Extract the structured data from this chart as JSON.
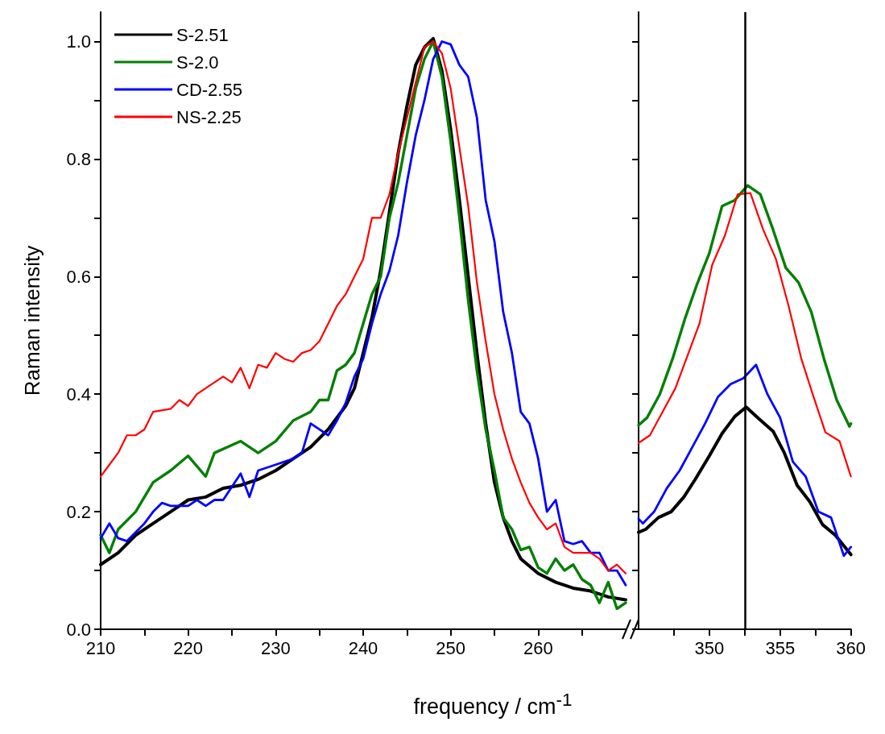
{
  "chart_data": [
    {
      "type": "line",
      "xlabel": "frequency / cm$^{-1}$",
      "ylabel": "Raman intensity",
      "xlim": [
        210,
        270
      ],
      "xticks": [
        210,
        {
          "value": 215,
          "label": null
        },
        220,
        {
          "value": 225,
          "label": null
        },
        230,
        {
          "value": 235,
          "label": null
        },
        240,
        {
          "value": 245,
          "label": null
        },
        250,
        {
          "value": 255,
          "label": null
        },
        260,
        {
          "value": 265,
          "label": null
        }
      ],
      "ylim": [
        0,
        1.05
      ],
      "yticks": [
        {
          "value": 0,
          "label": "0.0"
        },
        {
          "value": 0.1,
          "label": null
        },
        0.2,
        {
          "value": 0.3,
          "label": null
        },
        0.4,
        {
          "value": 0.5,
          "label": null
        },
        0.6,
        {
          "value": 0.7,
          "label": null
        },
        0.8,
        {
          "value": 0.9,
          "label": null
        },
        {
          "value": 1,
          "label": "1.0"
        }
      ],
      "legend": "top left",
      "series": [
        {
          "name": "S-2.51",
          "color": "#000000",
          "x": [
            210,
            212,
            214,
            216,
            218,
            220,
            222,
            224,
            226,
            228,
            230,
            232,
            234,
            236,
            238,
            239,
            240,
            241,
            242,
            243,
            244,
            245,
            246,
            247,
            248,
            249,
            250,
            251,
            252,
            253,
            254,
            255,
            256,
            257,
            258,
            260,
            262,
            264,
            266,
            268,
            270
          ],
          "values": [
            0.11,
            0.13,
            0.16,
            0.18,
            0.2,
            0.22,
            0.225,
            0.24,
            0.245,
            0.255,
            0.27,
            0.29,
            0.31,
            0.34,
            0.38,
            0.41,
            0.47,
            0.53,
            0.61,
            0.71,
            0.81,
            0.89,
            0.96,
            0.99,
            1.005,
            0.95,
            0.85,
            0.73,
            0.6,
            0.47,
            0.35,
            0.25,
            0.19,
            0.15,
            0.12,
            0.095,
            0.08,
            0.07,
            0.065,
            0.055,
            0.05
          ]
        },
        {
          "name": "S-2.0",
          "color": "#008000",
          "x": [
            210,
            211,
            212,
            214,
            216,
            218,
            220,
            222,
            223,
            226,
            228,
            230,
            232,
            234,
            235,
            236,
            237,
            238,
            239,
            240,
            241,
            242,
            243,
            244,
            245,
            246,
            247,
            248,
            249,
            250,
            251,
            252,
            253,
            254,
            255,
            256,
            257,
            258,
            259,
            260,
            261,
            262,
            263,
            264,
            265,
            266,
            267,
            268,
            269,
            270
          ],
          "values": [
            0.16,
            0.13,
            0.17,
            0.2,
            0.25,
            0.27,
            0.295,
            0.26,
            0.3,
            0.32,
            0.3,
            0.32,
            0.355,
            0.37,
            0.39,
            0.39,
            0.44,
            0.45,
            0.47,
            0.52,
            0.57,
            0.6,
            0.7,
            0.76,
            0.84,
            0.92,
            0.97,
            1.0,
            0.94,
            0.83,
            0.7,
            0.56,
            0.44,
            0.34,
            0.27,
            0.19,
            0.17,
            0.135,
            0.14,
            0.105,
            0.095,
            0.12,
            0.1,
            0.11,
            0.085,
            0.075,
            0.045,
            0.08,
            0.035,
            0.045
          ]
        },
        {
          "name": "CD-2.55",
          "color": "#0000ff",
          "x": [
            210,
            211,
            212,
            213,
            215,
            216,
            217,
            218,
            220,
            221,
            222,
            223,
            224,
            226,
            227,
            228,
            230,
            232,
            233,
            234,
            235,
            236,
            237,
            238,
            239,
            240,
            241,
            242,
            243,
            244,
            245,
            246,
            247,
            248,
            249,
            250,
            251,
            252,
            253,
            254,
            255,
            256,
            257,
            258,
            259,
            260,
            261,
            262,
            263,
            264,
            265,
            266,
            267,
            268,
            269,
            270
          ],
          "values": [
            0.155,
            0.18,
            0.155,
            0.15,
            0.18,
            0.2,
            0.215,
            0.21,
            0.21,
            0.22,
            0.21,
            0.22,
            0.22,
            0.265,
            0.225,
            0.27,
            0.28,
            0.29,
            0.3,
            0.35,
            0.34,
            0.33,
            0.355,
            0.385,
            0.43,
            0.46,
            0.52,
            0.57,
            0.61,
            0.67,
            0.76,
            0.84,
            0.9,
            0.97,
            1.0,
            0.995,
            0.96,
            0.94,
            0.87,
            0.73,
            0.66,
            0.54,
            0.47,
            0.37,
            0.35,
            0.29,
            0.2,
            0.22,
            0.15,
            0.145,
            0.15,
            0.13,
            0.13,
            0.1,
            0.1,
            0.075
          ]
        },
        {
          "name": "NS-2.25",
          "color": "#ff0000",
          "x": [
            210,
            211,
            212,
            213,
            214,
            215,
            216,
            218,
            219,
            220,
            221,
            222,
            223,
            224,
            225,
            226,
            227,
            228,
            229,
            230,
            231,
            232,
            233,
            234,
            235,
            236,
            237,
            238,
            239,
            240,
            241,
            242,
            243,
            244,
            245,
            246,
            247,
            248,
            249,
            250,
            251,
            252,
            253,
            254,
            255,
            256,
            257,
            258,
            259,
            260,
            261,
            262,
            263,
            264,
            265,
            266,
            267,
            268,
            269,
            270
          ],
          "values": [
            0.26,
            0.28,
            0.3,
            0.33,
            0.33,
            0.34,
            0.37,
            0.375,
            0.39,
            0.38,
            0.4,
            0.41,
            0.42,
            0.43,
            0.42,
            0.445,
            0.41,
            0.45,
            0.445,
            0.47,
            0.46,
            0.455,
            0.47,
            0.475,
            0.49,
            0.52,
            0.55,
            0.57,
            0.6,
            0.63,
            0.7,
            0.7,
            0.74,
            0.81,
            0.87,
            0.93,
            0.99,
            1.0,
            0.98,
            0.92,
            0.82,
            0.72,
            0.59,
            0.49,
            0.4,
            0.34,
            0.29,
            0.25,
            0.215,
            0.19,
            0.17,
            0.18,
            0.14,
            0.13,
            0.13,
            0.13,
            0.12,
            0.1,
            0.11,
            0.095
          ]
        }
      ]
    },
    {
      "type": "line",
      "xlim": [
        345,
        360
      ],
      "xticks": [
        {
          "value": 347.5,
          "label": null
        },
        350,
        {
          "value": 352.5,
          "label": null
        },
        355,
        {
          "value": 357.5,
          "label": null
        },
        360
      ],
      "ylim": [
        0,
        1.05
      ],
      "yticks": [
        0,
        0.1,
        0.2,
        0.3,
        0.4,
        0.5,
        0.6,
        0.7,
        0.8,
        0.9,
        1
      ],
      "tick_labels": "x",
      "ref_lines": [
        {
          "axis": "x",
          "value": 352.5,
          "color": "#000000"
        }
      ],
      "series": [
        {
          "color": "#000000",
          "x": [
            345,
            345.5,
            346.4,
            347.3,
            348.2,
            349,
            350,
            350.9,
            351.8,
            352.6,
            353.5,
            354.5,
            355.3,
            356.2,
            357.1,
            358,
            358.9,
            360
          ],
          "values": [
            0.165,
            0.17,
            0.19,
            0.2,
            0.225,
            0.255,
            0.295,
            0.333,
            0.362,
            0.378,
            0.358,
            0.337,
            0.3,
            0.245,
            0.217,
            0.178,
            0.16,
            0.127
          ]
        },
        {
          "color": "#008000",
          "x": [
            345,
            345.6,
            346.5,
            347.4,
            348.3,
            349.1,
            350,
            350.9,
            351.8,
            352.7,
            353.6,
            354.5,
            355.4,
            356.3,
            357.2,
            358.1,
            359,
            359.9,
            360
          ],
          "values": [
            0.347,
            0.36,
            0.4,
            0.46,
            0.53,
            0.585,
            0.64,
            0.72,
            0.73,
            0.755,
            0.74,
            0.68,
            0.615,
            0.59,
            0.54,
            0.46,
            0.39,
            0.345,
            0.35
          ]
        },
        {
          "color": "#0000ff",
          "x": [
            345,
            345.3,
            346.1,
            347,
            347.9,
            348.8,
            349.7,
            350.6,
            351.5,
            352.4,
            353.3,
            354.1,
            355,
            355.9,
            356.8,
            357.7,
            358.6,
            359.5,
            360
          ],
          "values": [
            0.188,
            0.18,
            0.2,
            0.24,
            0.27,
            0.31,
            0.35,
            0.395,
            0.417,
            0.427,
            0.45,
            0.4,
            0.36,
            0.285,
            0.26,
            0.2,
            0.19,
            0.125,
            0.14
          ]
        },
        {
          "color": "#ff0000",
          "x": [
            345,
            345.8,
            347.6,
            349.3,
            350.2,
            351.1,
            352,
            352.9,
            353.8,
            354.7,
            355.6,
            356.5,
            357.3,
            358.2,
            359.2,
            360
          ],
          "values": [
            0.317,
            0.33,
            0.41,
            0.52,
            0.62,
            0.67,
            0.74,
            0.742,
            0.68,
            0.63,
            0.55,
            0.46,
            0.4,
            0.335,
            0.32,
            0.26
          ]
        }
      ]
    }
  ]
}
